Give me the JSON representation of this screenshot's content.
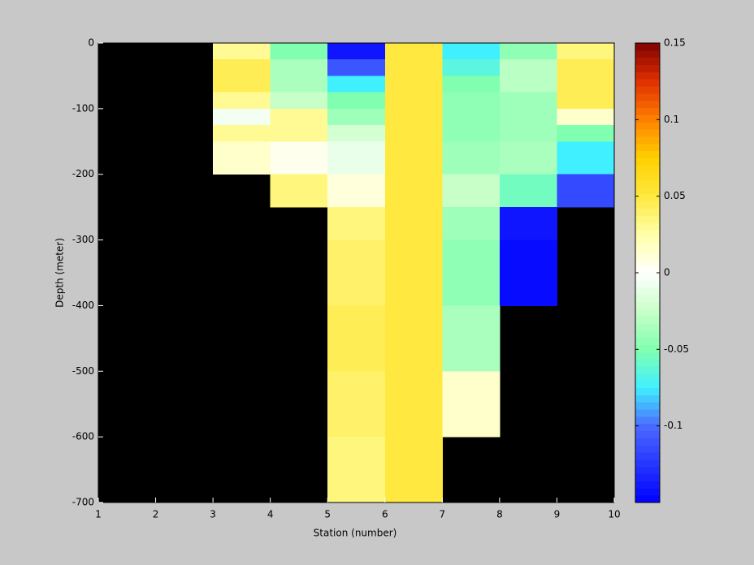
{
  "chart_data": {
    "type": "heatmap",
    "xlabel": "Station (number)",
    "ylabel": "Depth (meter)",
    "x_edges": [
      1,
      2,
      3,
      4,
      5,
      6,
      7,
      8,
      9,
      10
    ],
    "y_edges": [
      0,
      -25,
      -50,
      -75,
      -100,
      -125,
      -150,
      -200,
      -250,
      -300,
      -400,
      -500,
      -600,
      -700
    ],
    "z": [
      [
        null,
        null,
        0.03,
        -0.05,
        -0.14,
        0.05,
        -0.075,
        -0.045,
        0.035
      ],
      [
        null,
        null,
        0.045,
        -0.035,
        -0.11,
        0.05,
        -0.065,
        -0.03,
        0.045
      ],
      [
        null,
        null,
        0.045,
        -0.035,
        -0.075,
        0.05,
        -0.05,
        -0.03,
        0.045
      ],
      [
        null,
        null,
        0.03,
        -0.025,
        -0.05,
        0.05,
        -0.045,
        -0.04,
        0.045
      ],
      [
        null,
        null,
        -0.005,
        0.03,
        -0.04,
        0.05,
        -0.045,
        -0.04,
        0.015
      ],
      [
        null,
        null,
        0.03,
        0.03,
        -0.02,
        0.05,
        -0.045,
        -0.04,
        -0.05
      ],
      [
        null,
        null,
        0.015,
        0.005,
        -0.01,
        0.05,
        -0.04,
        -0.035,
        -0.075
      ],
      [
        null,
        null,
        null,
        0.035,
        0.01,
        0.05,
        -0.025,
        -0.055,
        -0.115
      ],
      [
        null,
        null,
        null,
        null,
        0.035,
        0.05,
        -0.04,
        -0.14,
        null
      ],
      [
        null,
        null,
        null,
        null,
        0.04,
        0.05,
        -0.045,
        -0.145,
        null
      ],
      [
        null,
        null,
        null,
        null,
        0.045,
        0.05,
        -0.035,
        null,
        null
      ],
      [
        null,
        null,
        null,
        null,
        0.04,
        0.05,
        0.015,
        null,
        null
      ],
      [
        null,
        null,
        null,
        null,
        0.035,
        0.05,
        null,
        null,
        null
      ]
    ],
    "xlim": [
      1,
      10
    ],
    "xticks": [
      1,
      2,
      3,
      4,
      5,
      6,
      7,
      8,
      9,
      10
    ],
    "ylim": [
      -700,
      0
    ],
    "yticks": [
      0,
      -100,
      -200,
      -300,
      -400,
      -500,
      -600,
      -700
    ],
    "clim": [
      -0.15,
      0.15
    ],
    "cticks": [
      0.15,
      0.1,
      0.05,
      0,
      -0.05,
      -0.1
    ],
    "nan_color": "#000000",
    "colormap": [
      {
        "value": -0.15,
        "color": "#0000ff"
      },
      {
        "value": -0.1,
        "color": "#4a6aff"
      },
      {
        "value": -0.075,
        "color": "#40f0ff"
      },
      {
        "value": -0.05,
        "color": "#80ffb0"
      },
      {
        "value": -0.025,
        "color": "#c8ffc8"
      },
      {
        "value": 0,
        "color": "#ffffff"
      },
      {
        "value": 0.025,
        "color": "#ffffa8"
      },
      {
        "value": 0.05,
        "color": "#ffe840"
      },
      {
        "value": 0.075,
        "color": "#ffd000"
      },
      {
        "value": 0.1,
        "color": "#ff8000"
      },
      {
        "value": 0.125,
        "color": "#e03000"
      },
      {
        "value": 0.15,
        "color": "#800000"
      }
    ]
  }
}
